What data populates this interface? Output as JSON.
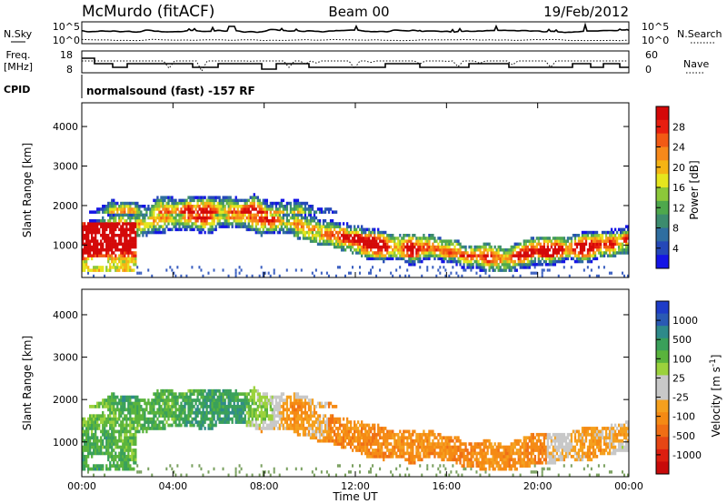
{
  "header": {
    "station": "McMurdo (fitACF)",
    "beam": "Beam 00",
    "date": "19/Feb/2012"
  },
  "side_labels": {
    "nsky": "N.Sky",
    "nsearch": "N.Search",
    "freq_line1": "Freq.",
    "freq_line2": "[MHz]",
    "nave": "Nave",
    "cpid": "CPID",
    "noise_top": "10^5",
    "noise_bottom": "10^0",
    "freq_top": "18",
    "freq_bottom": "8",
    "nave_top": "60",
    "nave_bottom": "0"
  },
  "cpid_text": "normalsound (fast) -157 RF",
  "chart_data": [
    {
      "type": "heatmap",
      "name": "power",
      "ylabel": "Slant Range [km]",
      "ylim": [
        180,
        4600
      ],
      "yticks": [
        "1000",
        "2000",
        "3000",
        "4000"
      ],
      "xlim": [
        0,
        24
      ],
      "colorbar": {
        "label": "Power [dB]",
        "ticks": [
          "4",
          "8",
          "12",
          "16",
          "20",
          "24",
          "28"
        ],
        "colors": [
          "#1414e6",
          "#2448b8",
          "#2f6ea0",
          "#3c8c6e",
          "#4ea84c",
          "#8cc83a",
          "#e6e61e",
          "#f5b414",
          "#f7891a",
          "#f25a14",
          "#e81e0f",
          "#d40808"
        ]
      }
    },
    {
      "type": "heatmap",
      "name": "velocity",
      "ylabel": "Slant Range [km]",
      "ylim": [
        180,
        4600
      ],
      "yticks": [
        "1000",
        "2000",
        "3000",
        "4000"
      ],
      "xlim": [
        0,
        24
      ],
      "xticks": [
        "00:00",
        "04:00",
        "08:00",
        "12:00",
        "16:00",
        "20:00",
        "00:00"
      ],
      "xlabel": "Time UT",
      "colorbar": {
        "label": "Velocity [m s^-1]",
        "ticks": [
          "1000",
          "500",
          "100",
          "25",
          "-25",
          "-100",
          "-500",
          "-1000"
        ],
        "colors": [
          "#1e3cc8",
          "#2a5ab4",
          "#2e8a8a",
          "#3aa05a",
          "#5ab43c",
          "#9bd23c",
          "#c8c8c8",
          "#c8c8c8",
          "#f5a01e",
          "#f58a14",
          "#f06e14",
          "#e64614",
          "#dc1e0f",
          "#c80a0a"
        ]
      }
    }
  ]
}
